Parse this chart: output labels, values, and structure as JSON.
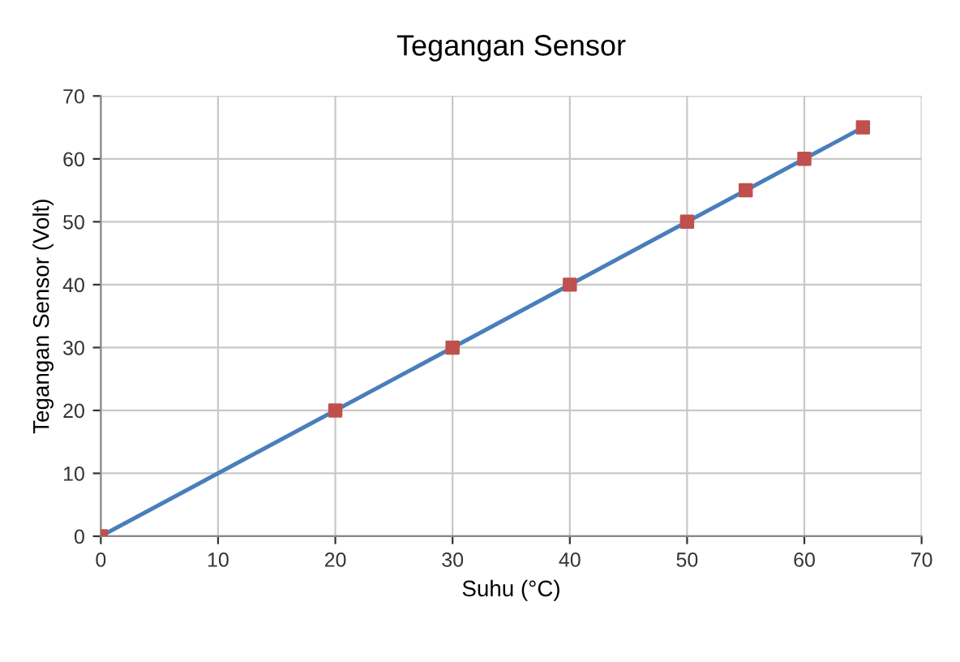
{
  "chart_data": {
    "type": "scatter",
    "title": "Tegangan Sensor",
    "xlabel": "Suhu (°C)",
    "ylabel": "Tegangan Sensor (Volt)",
    "series": [
      {
        "type": "line",
        "color": "#4a7ebb",
        "x": [
          0,
          65
        ],
        "values": [
          0,
          65
        ],
        "marker": "none",
        "line_style": "solid"
      },
      {
        "color": "#c0504d",
        "x": [
          0,
          20,
          30,
          40,
          50,
          55,
          60,
          65
        ],
        "values": [
          0,
          20,
          30,
          40,
          50,
          55,
          60,
          65
        ],
        "marker": "square"
      }
    ],
    "xlim": [
      0,
      70
    ],
    "ylim": [
      0,
      70
    ],
    "xticks": [
      0,
      10,
      20,
      30,
      40,
      50,
      60,
      70
    ],
    "yticks": [
      0,
      10,
      20,
      30,
      40,
      50,
      60,
      70
    ],
    "grid": true,
    "legend": false
  }
}
